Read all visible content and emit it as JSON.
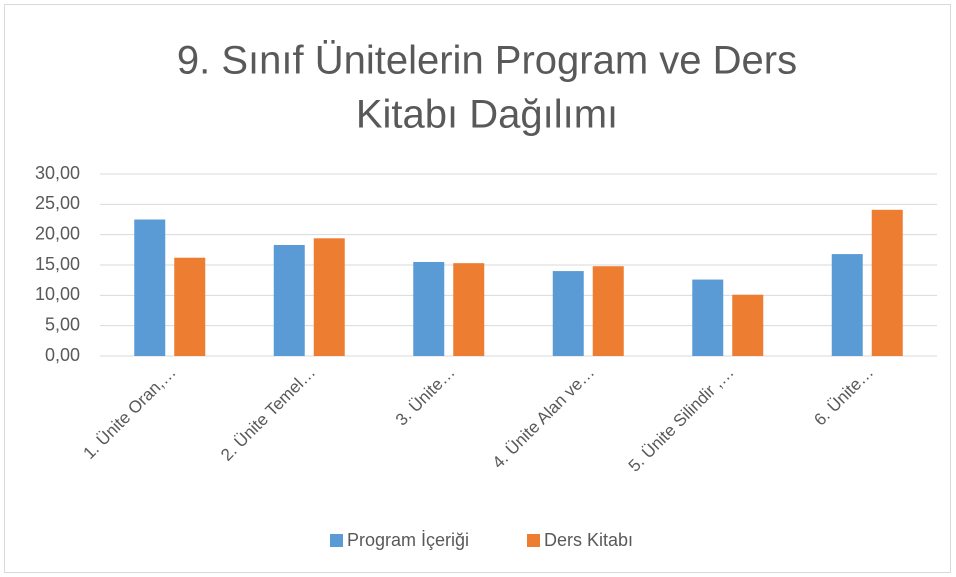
{
  "chart_data": {
    "type": "bar",
    "title": [
      "9. Sınıf Ünitelerin Program ve Ders",
      "Kitabı Dağılımı"
    ],
    "categories": [
      "1. Ünite Oran,…",
      "2. Ünite Temel…",
      "3. Ünite…",
      "4. Ünite Alan ve…",
      "5. Ünite Silindir ,…",
      "6. Ünite…"
    ],
    "series": [
      {
        "name": "Program İçeriği",
        "color": "#5b9bd5",
        "values": [
          22.5,
          18.3,
          15.5,
          14.0,
          12.6,
          16.8
        ]
      },
      {
        "name": "Ders Kitabı",
        "color": "#ed7d31",
        "values": [
          16.2,
          19.4,
          15.3,
          14.8,
          10.1,
          24.1
        ]
      }
    ],
    "ylim": [
      0,
      30
    ],
    "yticks": [
      {
        "value": 0,
        "label": "0,00"
      },
      {
        "value": 5,
        "label": "5,00"
      },
      {
        "value": 10,
        "label": "10,00"
      },
      {
        "value": 15,
        "label": "15,00"
      },
      {
        "value": 20,
        "label": "20,00"
      },
      {
        "value": 25,
        "label": "25,00"
      },
      {
        "value": 30,
        "label": "30,00"
      }
    ],
    "grid": true,
    "legend": "bottom"
  }
}
